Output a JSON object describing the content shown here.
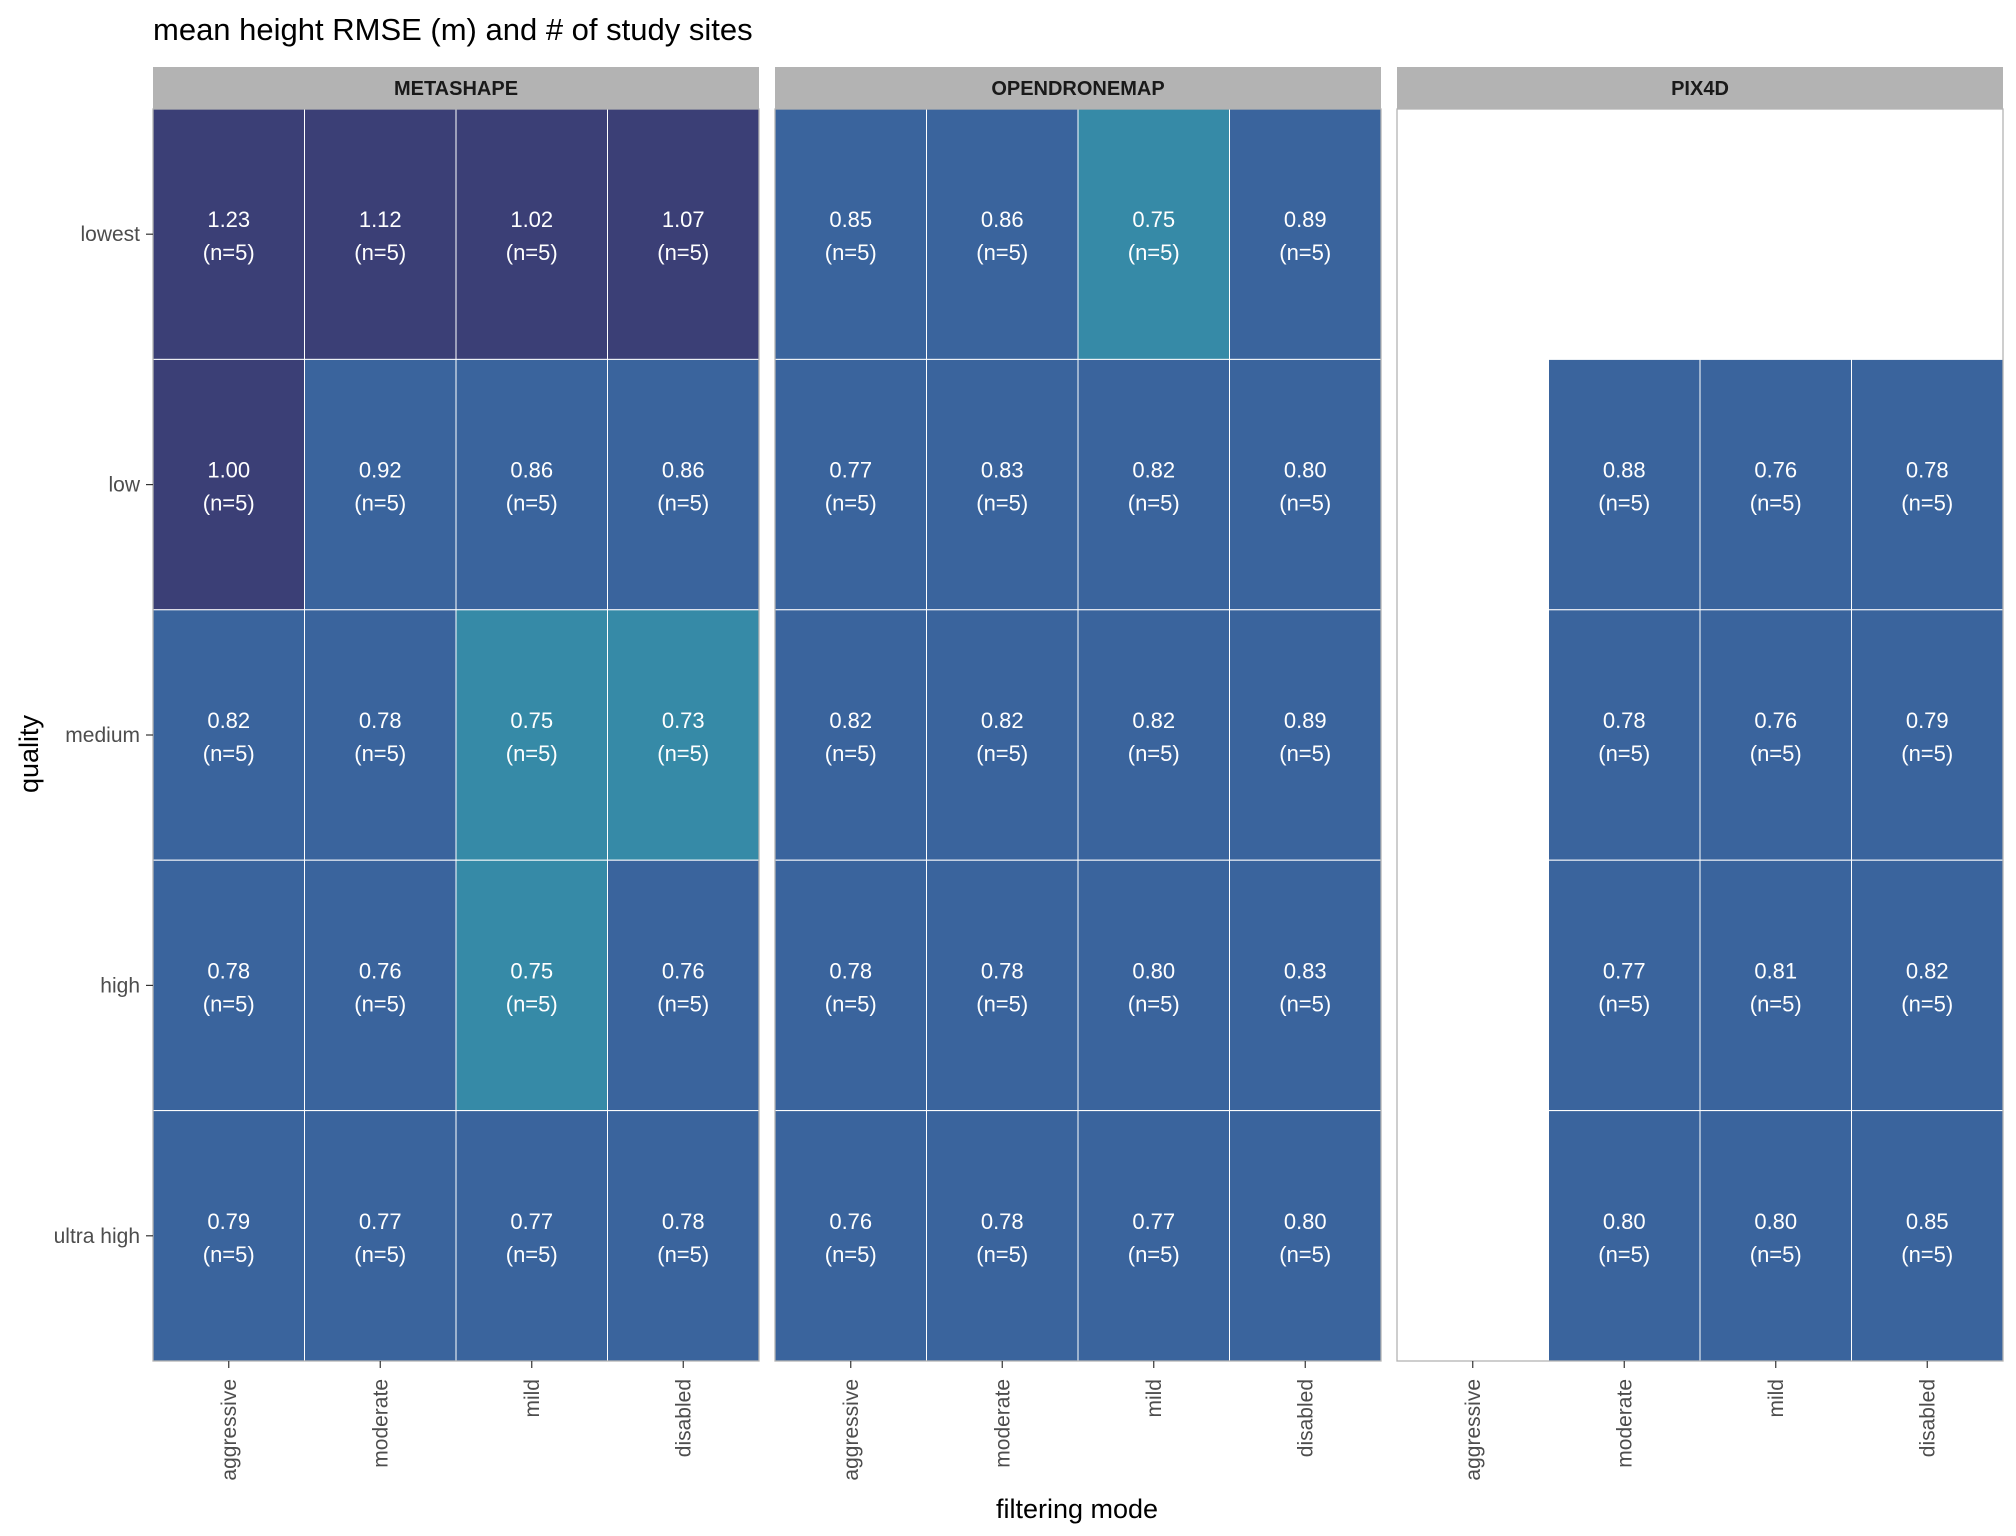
{
  "chart_data": {
    "type": "heatmap",
    "title": "mean height RMSE (m) and # of study sites",
    "xlabel": "filtering mode",
    "ylabel": "quality",
    "x_categories": [
      "aggressive",
      "moderate",
      "mild",
      "disabled"
    ],
    "y_categories": [
      "lowest",
      "low",
      "medium",
      "high",
      "ultra high"
    ],
    "colors": {
      "high_value": "#3b3f76",
      "mid_value": "#3a649d",
      "low_value": "#368aa7",
      "strip_bg": "#b3b3b3",
      "panel_border": "#b3b3b3"
    },
    "panels": [
      {
        "name": "METASHAPE",
        "cells": [
          {
            "quality": "lowest",
            "filtering": "aggressive",
            "value": 1.23,
            "label": "1.23",
            "n": "(n=5)"
          },
          {
            "quality": "lowest",
            "filtering": "moderate",
            "value": 1.12,
            "label": "1.12",
            "n": "(n=5)"
          },
          {
            "quality": "lowest",
            "filtering": "mild",
            "value": 1.02,
            "label": "1.02",
            "n": "(n=5)"
          },
          {
            "quality": "lowest",
            "filtering": "disabled",
            "value": 1.07,
            "label": "1.07",
            "n": "(n=5)"
          },
          {
            "quality": "low",
            "filtering": "aggressive",
            "value": 1.0,
            "label": "1.00",
            "n": "(n=5)"
          },
          {
            "quality": "low",
            "filtering": "moderate",
            "value": 0.92,
            "label": "0.92",
            "n": "(n=5)"
          },
          {
            "quality": "low",
            "filtering": "mild",
            "value": 0.86,
            "label": "0.86",
            "n": "(n=5)"
          },
          {
            "quality": "low",
            "filtering": "disabled",
            "value": 0.86,
            "label": "0.86",
            "n": "(n=5)"
          },
          {
            "quality": "medium",
            "filtering": "aggressive",
            "value": 0.82,
            "label": "0.82",
            "n": "(n=5)"
          },
          {
            "quality": "medium",
            "filtering": "moderate",
            "value": 0.78,
            "label": "0.78",
            "n": "(n=5)"
          },
          {
            "quality": "medium",
            "filtering": "mild",
            "value": 0.75,
            "label": "0.75",
            "n": "(n=5)"
          },
          {
            "quality": "medium",
            "filtering": "disabled",
            "value": 0.73,
            "label": "0.73",
            "n": "(n=5)"
          },
          {
            "quality": "high",
            "filtering": "aggressive",
            "value": 0.78,
            "label": "0.78",
            "n": "(n=5)"
          },
          {
            "quality": "high",
            "filtering": "moderate",
            "value": 0.76,
            "label": "0.76",
            "n": "(n=5)"
          },
          {
            "quality": "high",
            "filtering": "mild",
            "value": 0.75,
            "label": "0.75",
            "n": "(n=5)"
          },
          {
            "quality": "high",
            "filtering": "disabled",
            "value": 0.76,
            "label": "0.76",
            "n": "(n=5)"
          },
          {
            "quality": "ultra high",
            "filtering": "aggressive",
            "value": 0.79,
            "label": "0.79",
            "n": "(n=5)"
          },
          {
            "quality": "ultra high",
            "filtering": "moderate",
            "value": 0.77,
            "label": "0.77",
            "n": "(n=5)"
          },
          {
            "quality": "ultra high",
            "filtering": "mild",
            "value": 0.77,
            "label": "0.77",
            "n": "(n=5)"
          },
          {
            "quality": "ultra high",
            "filtering": "disabled",
            "value": 0.78,
            "label": "0.78",
            "n": "(n=5)"
          }
        ]
      },
      {
        "name": "OPENDRONEMAP",
        "cells": [
          {
            "quality": "lowest",
            "filtering": "aggressive",
            "value": 0.85,
            "label": "0.85",
            "n": "(n=5)"
          },
          {
            "quality": "lowest",
            "filtering": "moderate",
            "value": 0.86,
            "label": "0.86",
            "n": "(n=5)"
          },
          {
            "quality": "lowest",
            "filtering": "mild",
            "value": 0.75,
            "label": "0.75",
            "n": "(n=5)"
          },
          {
            "quality": "lowest",
            "filtering": "disabled",
            "value": 0.89,
            "label": "0.89",
            "n": "(n=5)"
          },
          {
            "quality": "low",
            "filtering": "aggressive",
            "value": 0.77,
            "label": "0.77",
            "n": "(n=5)"
          },
          {
            "quality": "low",
            "filtering": "moderate",
            "value": 0.83,
            "label": "0.83",
            "n": "(n=5)"
          },
          {
            "quality": "low",
            "filtering": "mild",
            "value": 0.82,
            "label": "0.82",
            "n": "(n=5)"
          },
          {
            "quality": "low",
            "filtering": "disabled",
            "value": 0.8,
            "label": "0.80",
            "n": "(n=5)"
          },
          {
            "quality": "medium",
            "filtering": "aggressive",
            "value": 0.82,
            "label": "0.82",
            "n": "(n=5)"
          },
          {
            "quality": "medium",
            "filtering": "moderate",
            "value": 0.82,
            "label": "0.82",
            "n": "(n=5)"
          },
          {
            "quality": "medium",
            "filtering": "mild",
            "value": 0.82,
            "label": "0.82",
            "n": "(n=5)"
          },
          {
            "quality": "medium",
            "filtering": "disabled",
            "value": 0.89,
            "label": "0.89",
            "n": "(n=5)"
          },
          {
            "quality": "high",
            "filtering": "aggressive",
            "value": 0.78,
            "label": "0.78",
            "n": "(n=5)"
          },
          {
            "quality": "high",
            "filtering": "moderate",
            "value": 0.78,
            "label": "0.78",
            "n": "(n=5)"
          },
          {
            "quality": "high",
            "filtering": "mild",
            "value": 0.8,
            "label": "0.80",
            "n": "(n=5)"
          },
          {
            "quality": "high",
            "filtering": "disabled",
            "value": 0.83,
            "label": "0.83",
            "n": "(n=5)"
          },
          {
            "quality": "ultra high",
            "filtering": "aggressive",
            "value": 0.76,
            "label": "0.76",
            "n": "(n=5)"
          },
          {
            "quality": "ultra high",
            "filtering": "moderate",
            "value": 0.78,
            "label": "0.78",
            "n": "(n=5)"
          },
          {
            "quality": "ultra high",
            "filtering": "mild",
            "value": 0.77,
            "label": "0.77",
            "n": "(n=5)"
          },
          {
            "quality": "ultra high",
            "filtering": "disabled",
            "value": 0.8,
            "label": "0.80",
            "n": "(n=5)"
          }
        ]
      },
      {
        "name": "PIX4D",
        "cells": [
          {
            "quality": "low",
            "filtering": "moderate",
            "value": 0.88,
            "label": "0.88",
            "n": "(n=5)"
          },
          {
            "quality": "low",
            "filtering": "mild",
            "value": 0.76,
            "label": "0.76",
            "n": "(n=5)"
          },
          {
            "quality": "low",
            "filtering": "disabled",
            "value": 0.78,
            "label": "0.78",
            "n": "(n=5)"
          },
          {
            "quality": "medium",
            "filtering": "moderate",
            "value": 0.78,
            "label": "0.78",
            "n": "(n=5)"
          },
          {
            "quality": "medium",
            "filtering": "mild",
            "value": 0.76,
            "label": "0.76",
            "n": "(n=5)"
          },
          {
            "quality": "medium",
            "filtering": "disabled",
            "value": 0.79,
            "label": "0.79",
            "n": "(n=5)"
          },
          {
            "quality": "high",
            "filtering": "moderate",
            "value": 0.77,
            "label": "0.77",
            "n": "(n=5)"
          },
          {
            "quality": "high",
            "filtering": "mild",
            "value": 0.81,
            "label": "0.81",
            "n": "(n=5)"
          },
          {
            "quality": "high",
            "filtering": "disabled",
            "value": 0.82,
            "label": "0.82",
            "n": "(n=5)"
          },
          {
            "quality": "ultra high",
            "filtering": "moderate",
            "value": 0.8,
            "label": "0.80",
            "n": "(n=5)"
          },
          {
            "quality": "ultra high",
            "filtering": "mild",
            "value": 0.8,
            "label": "0.80",
            "n": "(n=5)"
          },
          {
            "quality": "ultra high",
            "filtering": "disabled",
            "value": 0.85,
            "label": "0.85",
            "n": "(n=5)"
          }
        ]
      }
    ]
  }
}
